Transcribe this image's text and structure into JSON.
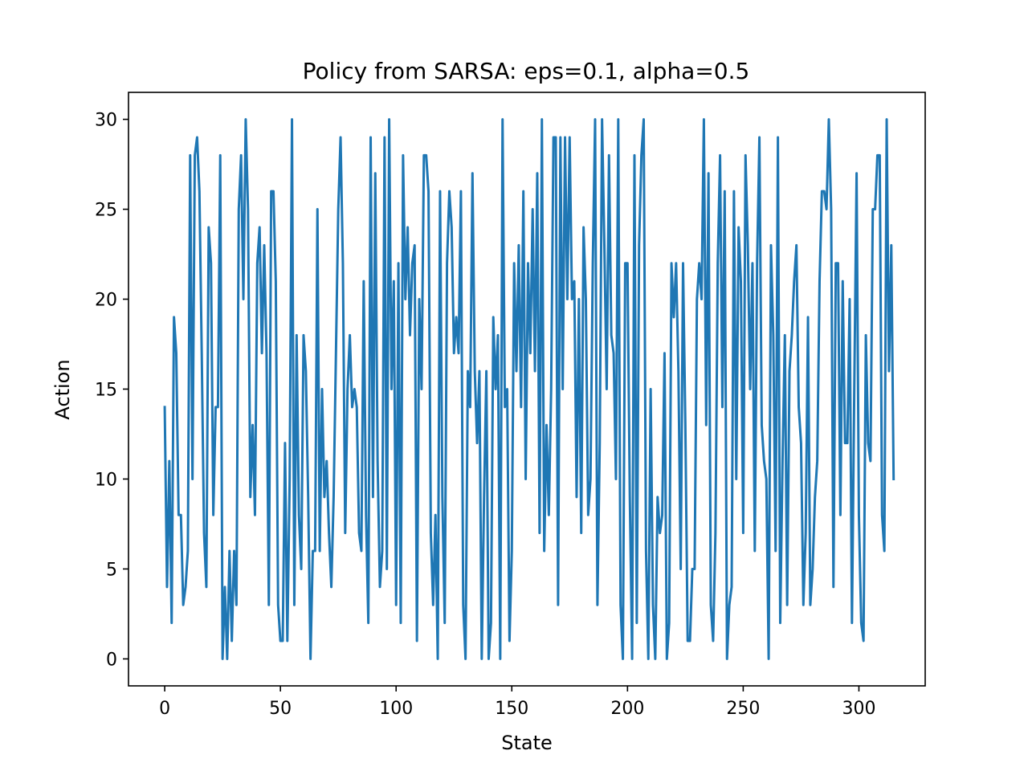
{
  "chart_data": {
    "type": "line",
    "title": "Policy from SARSA: eps=0.1, alpha=0.5",
    "xlabel": "State",
    "ylabel": "Action",
    "xlim": [
      -15.65,
      328.65
    ],
    "ylim": [
      -1.5,
      31.5
    ],
    "xticks": [
      0,
      50,
      100,
      150,
      200,
      250,
      300
    ],
    "yticks": [
      0,
      5,
      10,
      15,
      20,
      25,
      30
    ],
    "xtick_labels": [
      "0",
      "50",
      "100",
      "150",
      "200",
      "250",
      "300"
    ],
    "ytick_labels": [
      "0",
      "5",
      "10",
      "15",
      "20",
      "25",
      "30"
    ],
    "grid": false,
    "legend": "none",
    "colors": {
      "series": "#1f77b4",
      "axes": "#000000",
      "background": "#ffffff"
    },
    "series": [
      {
        "x_start": 0,
        "values": [
          14,
          4,
          11,
          2,
          19,
          17,
          8,
          8,
          3,
          4,
          6,
          28,
          10,
          28,
          29,
          26,
          17,
          7,
          4,
          24,
          22,
          8,
          14,
          14,
          28,
          0,
          4,
          0,
          6,
          1,
          6,
          3,
          25,
          28,
          20,
          30,
          25,
          9,
          13,
          8,
          22,
          24,
          17,
          23,
          17,
          3,
          26,
          26,
          21,
          3,
          1,
          1,
          12,
          1,
          10,
          30,
          3,
          18,
          8,
          5,
          18,
          16,
          9,
          0,
          6,
          6,
          25,
          6,
          15,
          9,
          11,
          7,
          4,
          9,
          17,
          25,
          29,
          22,
          7,
          15,
          18,
          14,
          15,
          14,
          7,
          6,
          21,
          8,
          2,
          29,
          9,
          27,
          11,
          4,
          6,
          29,
          5,
          30,
          15,
          21,
          3,
          22,
          2,
          28,
          20,
          24,
          18,
          22,
          23,
          1,
          20,
          15,
          28,
          28,
          26,
          7,
          3,
          8,
          0,
          26,
          9,
          2,
          22,
          26,
          24,
          17,
          19,
          17,
          26,
          3,
          0,
          16,
          14,
          27,
          16,
          12,
          16,
          0,
          9,
          16,
          0,
          2,
          19,
          15,
          18,
          0,
          30,
          14,
          15,
          1,
          6,
          22,
          16,
          23,
          14,
          26,
          10,
          22,
          17,
          25,
          16,
          27,
          7,
          30,
          6,
          13,
          8,
          15,
          29,
          29,
          3,
          29,
          15,
          29,
          20,
          29,
          20,
          21,
          9,
          20,
          7,
          24,
          20,
          8,
          10,
          22,
          30,
          3,
          12,
          30,
          23,
          15,
          28,
          18,
          17,
          10,
          30,
          3,
          0,
          22,
          22,
          9,
          0,
          28,
          2,
          23,
          28,
          30,
          6,
          0,
          15,
          3,
          0,
          9,
          7,
          8,
          17,
          0,
          2,
          22,
          19,
          22,
          16,
          5,
          22,
          13,
          1,
          1,
          5,
          5,
          20,
          22,
          20,
          30,
          13,
          27,
          3,
          1,
          7,
          22,
          28,
          14,
          26,
          0,
          3,
          4,
          26,
          10,
          24,
          21,
          7,
          28,
          23,
          15,
          22,
          6,
          22,
          29,
          13,
          11,
          10,
          0,
          23,
          18,
          6,
          29,
          2,
          11,
          18,
          3,
          16,
          18,
          21,
          23,
          14,
          12,
          3,
          7,
          19,
          3,
          5,
          9,
          11,
          21,
          26,
          26,
          25,
          30,
          25,
          4,
          22,
          22,
          8,
          21,
          12,
          12,
          20,
          2,
          15,
          27,
          8,
          2,
          1,
          18,
          12,
          11,
          25,
          25,
          28,
          28,
          8,
          6,
          30,
          16,
          23,
          10
        ]
      }
    ]
  }
}
